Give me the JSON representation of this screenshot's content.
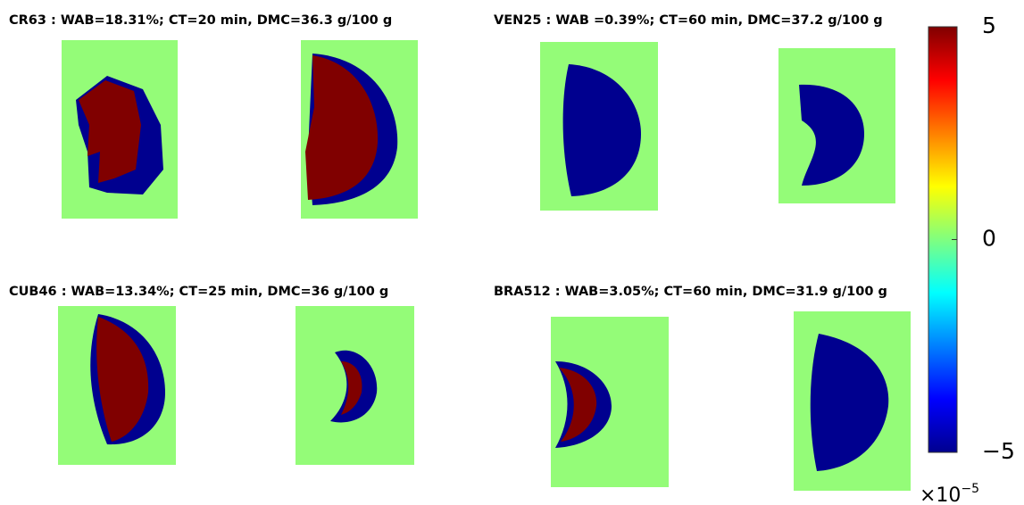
{
  "panels": [
    {
      "title": "CR63 : WAB=18.31%; CT=20 min, DMC=36.3 g/100 g"
    },
    {
      "title": "VEN25 : WAB =0.39%; CT=60 min, DMC=37.2 g/100 g"
    },
    {
      "title": "CUB46 : WAB=13.34%; CT=25 min, DMC=36 g/100 g"
    },
    {
      "title": "BRA512  : WAB=3.05%; CT=60 min, DMC=31.9 g/100 g"
    }
  ],
  "colorbar": {
    "range": [
      -5,
      5
    ],
    "ticks": [
      {
        "value": 5,
        "label": "5"
      },
      {
        "value": 0,
        "label": "0"
      },
      {
        "value": -5,
        "label": "−5"
      }
    ],
    "multiplier": "×10",
    "exponent": "−5"
  }
}
